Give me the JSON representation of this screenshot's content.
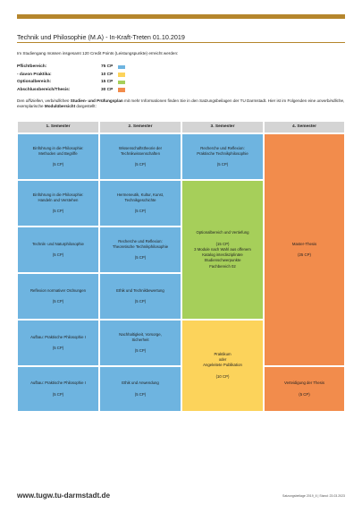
{
  "header": {
    "title": "Technik und Philosophie (M.A) - In-Kraft-Treten 01.10.2019"
  },
  "intro": "Im Studiengang müssen insgesamt 120 Credit Points (Leistungspunkte) erreicht werden:",
  "credits": [
    {
      "label": "Pflichtbereich:",
      "value": "75 CP",
      "color": "#6eb4e0"
    },
    {
      "label": "- davon Praktika:",
      "value": "10 CP",
      "color": "#fcd35b"
    },
    {
      "label": "Optionalbereich:",
      "value": "15 CP",
      "color": "#a6cf5a"
    },
    {
      "label": "Abschlussbereich/Thesis:",
      "value": "30 CP",
      "color": "#f28c4c"
    }
  ],
  "paragraph": {
    "p1": "Den ",
    "italic1": "offiziellen, verbindlichen",
    "p2": " ",
    "bold1": "Studien- und Prüfungsplan",
    "p3": " mit mehr Informationen finden Sie in den Satzungsbeilagen der TU Darmstadt. Hier ist im Folgenden eine ",
    "italic2": "unverbindliche",
    "p4": ", exemplarische ",
    "bold2": "Modulübersicht",
    "p5": " dargestellt:"
  },
  "table": {
    "headers": [
      "1. Semester",
      "2. Semester",
      "3. Semester",
      "4. Semester"
    ],
    "cells": {
      "s1_r1": "Einführung in die Philosophie:\nMethoden und Begriffe\n\n(5 CP)",
      "s1_r2": "Einführung in die Philosophie:\nHandeln und Verstehen\n\n(5 CP)",
      "s1_r3": "Technik- und Naturphilosophie\n\n(5 CP)",
      "s1_r4": "Reflexion normativer Ordnungen\n\n(5 CP)",
      "s1_r5": "Aufbau: Praktische Philosophie I\n\n(5 CP)",
      "s1_r6": "Aufbau: Praktische Philosophie I\n\n(5 CP)",
      "s2_r1": "Wissenschaftstheorie der\nTechnikwissenschaften\n\n(5 CP)",
      "s2_r2": "Hermeneutik, Kultur, Kunst,\nTechnikgeschichte\n\n(5 CP)",
      "s2_r3": "Recherche und Reflexion:\nTheoretische Technikphilosophie\n\n(5 CP)",
      "s2_r4": "Ethik und Technikbewertung\n\n(5 CP)",
      "s2_r5": "Nachhaltigkeit, Vorsorge,\nSicherheit\n\n(5 CP)",
      "s2_r6": "Ethik und Anwendung\n\n(5 CP)",
      "s3_r1": "Recherche und Reflexion:\nPraktische Technikphilosophie\n\n(5 CP)",
      "s3_opt": "Optionalbereich und Vertiefung\n\n(15 CP)\n3 Module nach Wahl aus offenem\nKatalog interdisziplinäre\nStudienschwerpunkte\nFachbereich 02",
      "s3_prak": "Praktikum\noder\nAngeleitete Publikation\n\n(10 CP)",
      "s4_thesis": "Master-Thesis\n\n(25 CP)",
      "s4_def": "Verteidigung der Thesis\n\n(5 CP)"
    }
  },
  "footer": {
    "url": "www.tugw.tu-darmstadt.de",
    "meta": "Satzungsbeilage 2019_II   |   Stand: 23.03.2023"
  }
}
